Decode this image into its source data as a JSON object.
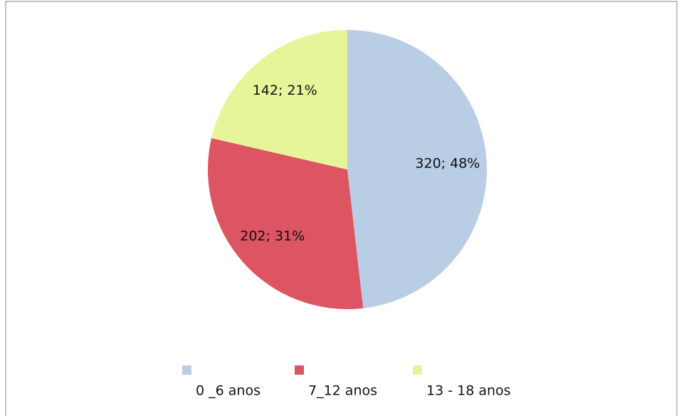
{
  "chart_data": {
    "type": "pie",
    "categories": [
      "0 _6 anos",
      "7_12 anos",
      "13 - 18 anos"
    ],
    "values": [
      320,
      202,
      142
    ],
    "value_labels": [
      "320; 48%",
      "202; 31%",
      "142; 21%"
    ],
    "colors": [
      "#b9cde5",
      "#dd5462",
      "#e6f59a"
    ],
    "legend": "bottom"
  }
}
